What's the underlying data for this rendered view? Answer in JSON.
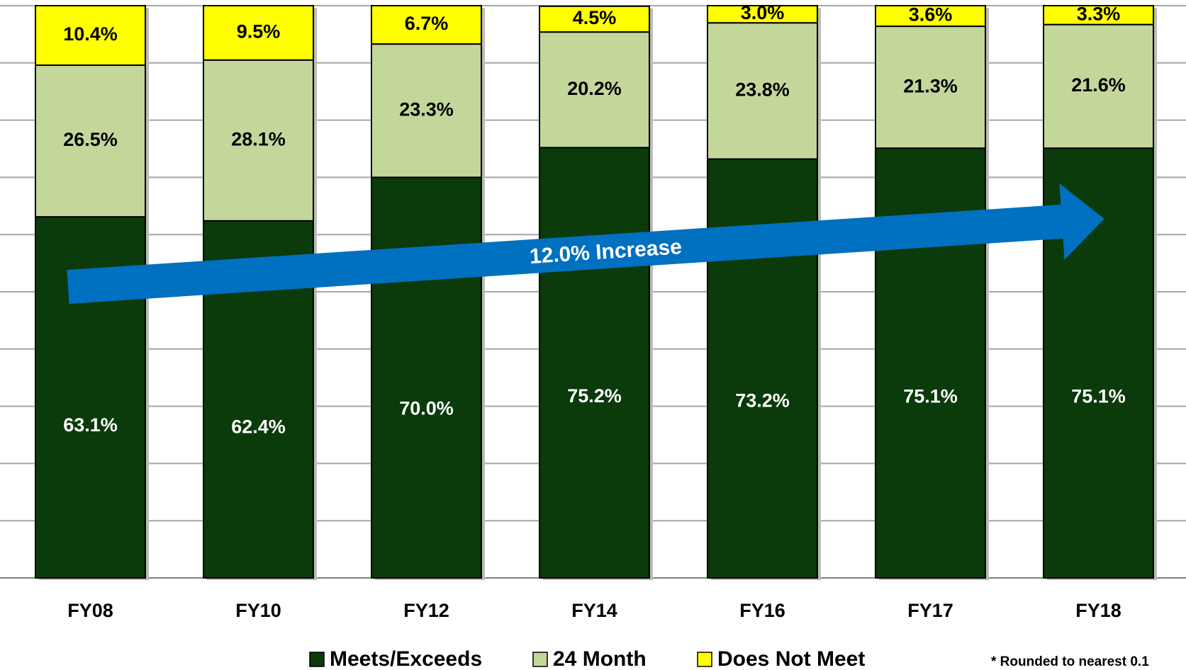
{
  "chart_data": {
    "type": "stacked_bar",
    "categories": [
      "FY08",
      "FY10",
      "FY12",
      "FY14",
      "FY16",
      "FY17",
      "FY18"
    ],
    "series": [
      {
        "name": "Meets/Exceeds",
        "color": "#0b3a0b",
        "label_color": "#ffffff",
        "values": [
          63.1,
          62.4,
          70.0,
          75.2,
          73.2,
          75.1,
          75.1
        ],
        "value_labels": [
          "63.1%",
          "62.4%",
          "70.0%",
          "75.2%",
          "73.2%",
          "75.1%",
          "75.1%"
        ]
      },
      {
        "name": "24 Month",
        "color": "#c4d79b",
        "label_color": "#000000",
        "values": [
          26.5,
          28.1,
          23.3,
          20.2,
          23.8,
          21.3,
          21.6
        ],
        "value_labels": [
          "26.5%",
          "28.1%",
          "23.3%",
          "20.2%",
          "23.8%",
          "21.3%",
          "21.6%"
        ]
      },
      {
        "name": "Does Not Meet",
        "color": "#ffff00",
        "label_color": "#000000",
        "values": [
          10.4,
          9.5,
          6.7,
          4.5,
          3.0,
          3.6,
          3.3
        ],
        "value_labels": [
          "10.4%",
          "9.5%",
          "6.7%",
          "4.5%",
          "3.0%",
          "3.6%",
          "3.3%"
        ]
      }
    ],
    "ylim": [
      0,
      100
    ],
    "yticks": [
      0,
      10,
      20,
      30,
      40,
      50,
      60,
      70,
      80,
      90,
      100
    ],
    "grid": true,
    "annotation": "12.0% Increase",
    "arrow_color": "#0070c0",
    "footnote": "* Rounded to nearest  0.1",
    "legend": "bottom"
  }
}
